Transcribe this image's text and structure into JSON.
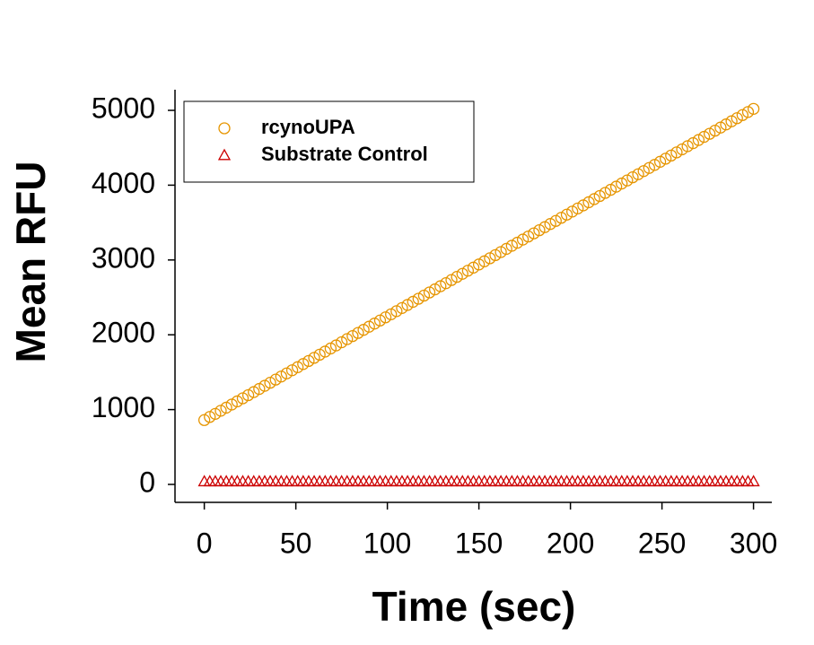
{
  "chart_data": {
    "type": "scatter",
    "xlabel": "Time (sec)",
    "ylabel": "Mean RFU",
    "x": [
      0,
      3,
      6,
      9,
      12,
      15,
      18,
      21,
      24,
      27,
      30,
      33,
      36,
      39,
      42,
      45,
      48,
      51,
      54,
      57,
      60,
      63,
      66,
      69,
      72,
      75,
      78,
      81,
      84,
      87,
      90,
      93,
      96,
      99,
      102,
      105,
      108,
      111,
      114,
      117,
      120,
      123,
      126,
      129,
      132,
      135,
      138,
      141,
      144,
      147,
      150,
      153,
      156,
      159,
      162,
      165,
      168,
      171,
      174,
      177,
      180,
      183,
      186,
      189,
      192,
      195,
      198,
      201,
      204,
      207,
      210,
      213,
      216,
      219,
      222,
      225,
      228,
      231,
      234,
      237,
      240,
      243,
      246,
      249,
      252,
      255,
      258,
      261,
      264,
      267,
      270,
      273,
      276,
      279,
      282,
      285,
      288,
      291,
      294,
      297,
      300
    ],
    "series": [
      {
        "name": "rcynoUPA",
        "color": "#e69500",
        "marker": "circle",
        "values": [
          860,
          902,
          943,
          985,
          1026,
          1068,
          1110,
          1151,
          1193,
          1234,
          1276,
          1318,
          1359,
          1401,
          1442,
          1484,
          1526,
          1567,
          1609,
          1650,
          1692,
          1734,
          1775,
          1817,
          1858,
          1900,
          1942,
          1983,
          2025,
          2066,
          2108,
          2150,
          2191,
          2233,
          2274,
          2316,
          2358,
          2399,
          2441,
          2482,
          2524,
          2566,
          2607,
          2649,
          2690,
          2732,
          2774,
          2815,
          2857,
          2898,
          2940,
          2982,
          3023,
          3065,
          3106,
          3148,
          3190,
          3231,
          3273,
          3314,
          3356,
          3398,
          3439,
          3481,
          3522,
          3564,
          3606,
          3647,
          3689,
          3730,
          3772,
          3814,
          3855,
          3897,
          3938,
          3980,
          4022,
          4063,
          4105,
          4146,
          4188,
          4230,
          4271,
          4313,
          4354,
          4396,
          4438,
          4479,
          4521,
          4562,
          4604,
          4646,
          4687,
          4729,
          4770,
          4812,
          4854,
          4895,
          4937,
          4978,
          5020
        ]
      },
      {
        "name": "Substrate Control",
        "color": "#cc0000",
        "marker": "triangle",
        "values": [
          40,
          40,
          40,
          40,
          40,
          40,
          40,
          40,
          40,
          40,
          40,
          40,
          40,
          40,
          40,
          40,
          40,
          40,
          40,
          40,
          40,
          40,
          40,
          40,
          40,
          40,
          40,
          40,
          40,
          40,
          40,
          40,
          40,
          40,
          40,
          40,
          40,
          40,
          40,
          40,
          40,
          40,
          40,
          40,
          40,
          40,
          40,
          40,
          40,
          40,
          40,
          40,
          40,
          40,
          40,
          40,
          40,
          40,
          40,
          40,
          40,
          40,
          40,
          40,
          40,
          40,
          40,
          40,
          40,
          40,
          40,
          40,
          40,
          40,
          40,
          40,
          40,
          40,
          40,
          40,
          40,
          40,
          40,
          40,
          40,
          40,
          40,
          40,
          40,
          40,
          40,
          40,
          40,
          40,
          40,
          40,
          40,
          40,
          40,
          40,
          40
        ]
      }
    ],
    "xlim": [
      -16,
      310
    ],
    "ylim": [
      -240,
      5276
    ],
    "xticks": [
      0,
      50,
      100,
      150,
      200,
      250,
      300
    ],
    "yticks": [
      0,
      1000,
      2000,
      3000,
      4000,
      5000
    ],
    "legend": "upper left"
  }
}
